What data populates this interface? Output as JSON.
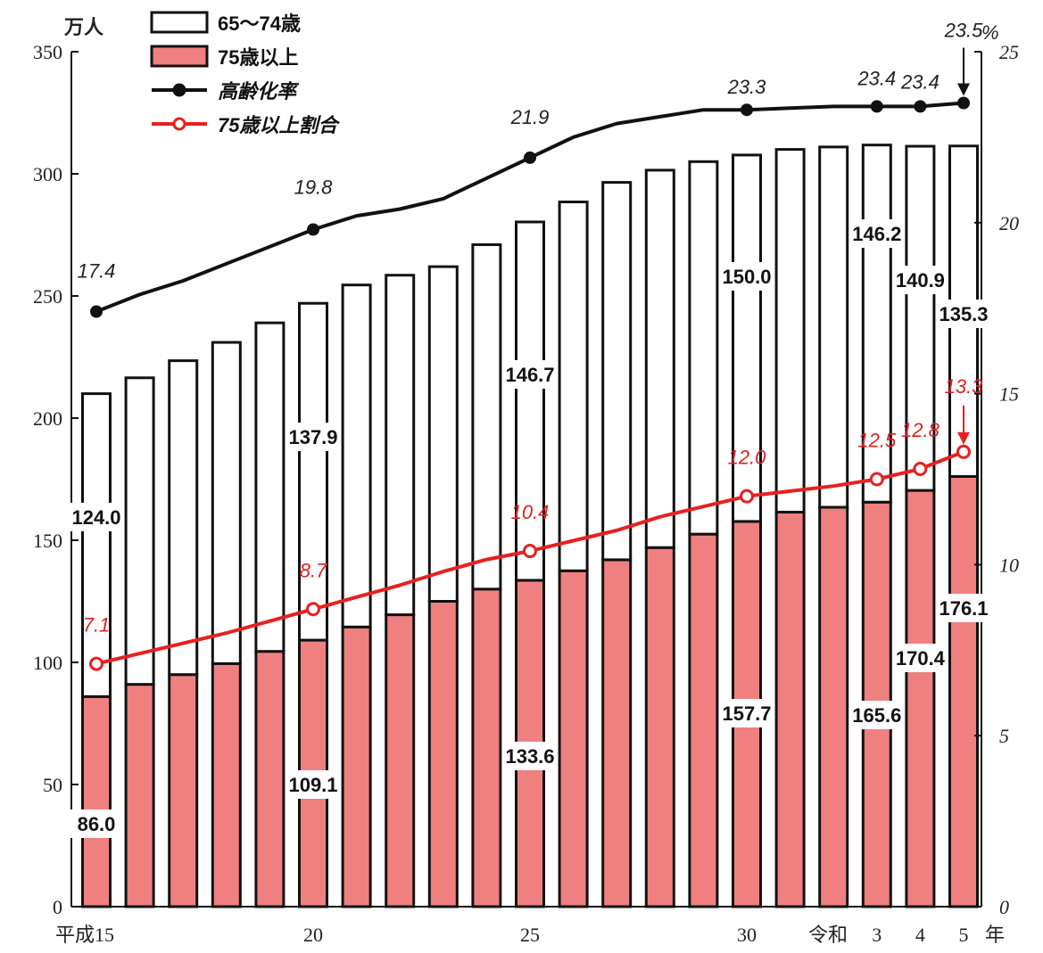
{
  "chart_data": {
    "type": "bar",
    "stacked": true,
    "left_unit": "万人",
    "right_unit": "%",
    "x_tick_labels": [
      {
        "index": 0,
        "text": "平成15"
      },
      {
        "index": 5,
        "text": "20"
      },
      {
        "index": 10,
        "text": "25"
      },
      {
        "index": 15,
        "text": "30"
      },
      {
        "index": 16,
        "text": "令和"
      },
      {
        "index": 18,
        "text": "3"
      },
      {
        "index": 19,
        "text": "4"
      },
      {
        "index": 20,
        "text": "5"
      }
    ],
    "x_end_label": "年",
    "y_left": {
      "lim": [
        0,
        350
      ],
      "ticks": [
        0,
        50,
        100,
        150,
        200,
        250,
        300,
        350
      ]
    },
    "y_right": {
      "lim": [
        0,
        25
      ],
      "ticks": [
        0,
        5,
        10,
        15,
        20,
        25
      ]
    },
    "series": [
      {
        "name": "75歳以上",
        "kind": "bar",
        "color": "#f08080",
        "values": [
          86.0,
          91,
          95,
          99.5,
          104.5,
          109.1,
          114.5,
          119.5,
          125,
          130,
          133.6,
          137.5,
          142,
          147,
          152.5,
          157.7,
          161.5,
          163.5,
          165.6,
          170.4,
          176.1
        ]
      },
      {
        "name": "65～74歳",
        "kind": "bar",
        "color": "#ffffff",
        "values": [
          124.0,
          125.5,
          128.5,
          131.5,
          134.5,
          137.9,
          140,
          139,
          137,
          141,
          146.7,
          151,
          154.5,
          154.5,
          152.5,
          150.0,
          148.5,
          147.5,
          146.2,
          140.9,
          135.3
        ]
      },
      {
        "name": "高齢化率",
        "kind": "line",
        "axis": "right",
        "color": "#111111",
        "values": [
          17.4,
          17.9,
          18.3,
          18.8,
          19.3,
          19.8,
          20.2,
          20.4,
          20.7,
          21.3,
          21.9,
          22.5,
          22.9,
          23.1,
          23.3,
          23.3,
          23.35,
          23.4,
          23.4,
          23.4,
          23.5
        ]
      },
      {
        "name": "75歳以上割合",
        "kind": "line",
        "axis": "right",
        "color": "#e82020",
        "values": [
          7.1,
          7.4,
          7.7,
          8.0,
          8.35,
          8.7,
          9.05,
          9.4,
          9.8,
          10.15,
          10.4,
          10.7,
          11.0,
          11.4,
          11.7,
          12.0,
          12.15,
          12.3,
          12.5,
          12.8,
          13.3
        ]
      }
    ],
    "bar_labels": [
      {
        "index": 0,
        "bottom": "86.0",
        "top": "124.0"
      },
      {
        "index": 5,
        "bottom": "109.1",
        "top": "137.9"
      },
      {
        "index": 10,
        "bottom": "133.6",
        "top": "146.7"
      },
      {
        "index": 15,
        "bottom": "157.7",
        "top": "150.0"
      },
      {
        "index": 18,
        "bottom": "165.6",
        "top": "146.2"
      },
      {
        "index": 19,
        "bottom": "170.4",
        "top": "140.9"
      },
      {
        "index": 20,
        "bottom": "176.1",
        "top": "135.3"
      }
    ],
    "rate_labels": [
      {
        "index": 0,
        "text": "17.4"
      },
      {
        "index": 5,
        "text": "19.8"
      },
      {
        "index": 10,
        "text": "21.9"
      },
      {
        "index": 15,
        "text": "23.3"
      },
      {
        "index": 18,
        "text": "23.4"
      },
      {
        "index": 19,
        "text": "23.4"
      },
      {
        "index": 20,
        "text": "23.5"
      }
    ],
    "ratio_labels": [
      {
        "index": 0,
        "text": "7.1"
      },
      {
        "index": 5,
        "text": "8.7"
      },
      {
        "index": 10,
        "text": "10.4"
      },
      {
        "index": 15,
        "text": "12.0"
      },
      {
        "index": 18,
        "text": "12.5"
      },
      {
        "index": 19,
        "text": "12.8"
      },
      {
        "index": 20,
        "text": "13.3"
      }
    ],
    "legend": [
      {
        "label": "65～74歳",
        "kind": "bar-white"
      },
      {
        "label": "75歳以上",
        "kind": "bar-red"
      },
      {
        "label": "高齢化率",
        "kind": "line-black"
      },
      {
        "label": "75歳以上割合",
        "kind": "line-red"
      }
    ],
    "legend_placement": "top-left",
    "grid": false
  }
}
